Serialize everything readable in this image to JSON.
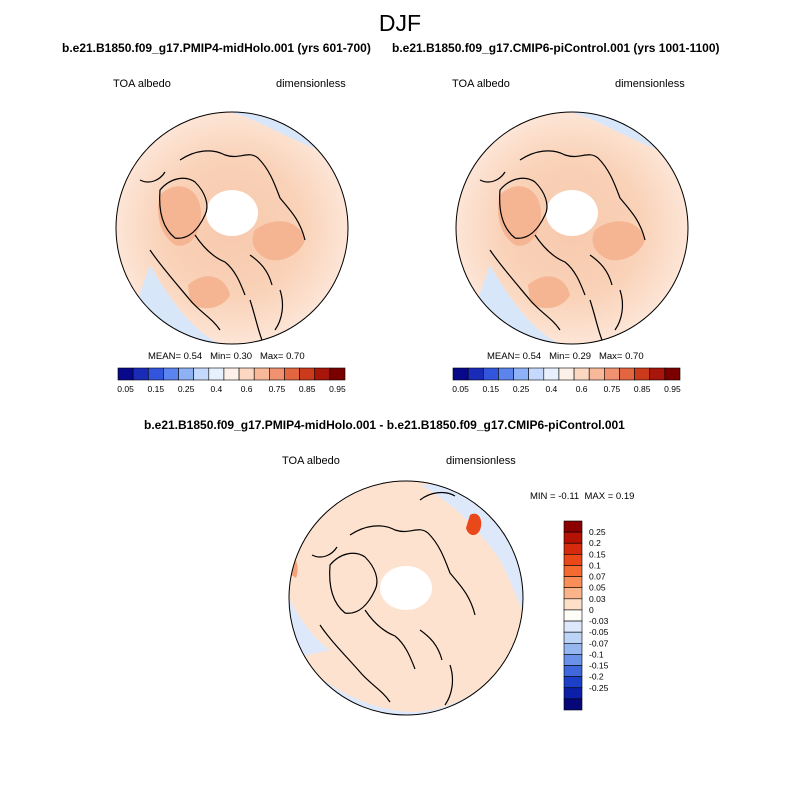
{
  "title": "DJF",
  "panels": [
    {
      "case": "b.e21.B1850.f09_g17.PMIP4-midHolo.001 (yrs 601-700)",
      "variable": "TOA albedo",
      "units": "dimensionless",
      "stats": {
        "mean_label": "MEAN=",
        "mean": "0.54",
        "min_label": "Min=",
        "min": "0.30",
        "max_label": "Max=",
        "max": "0.70"
      }
    },
    {
      "case": "b.e21.B1850.f09_g17.CMIP6-piControl.001 (yrs 1001-1100)",
      "variable": "TOA albedo",
      "units": "dimensionless",
      "stats": {
        "mean_label": "MEAN=",
        "mean": "0.54",
        "min_label": "Min=",
        "min": "0.29",
        "max_label": "Max=",
        "max": "0.70"
      }
    },
    {
      "case": "b.e21.B1850.f09_g17.PMIP4-midHolo.001 - b.e21.B1850.f09_g17.CMIP6-piControl.001",
      "variable": "TOA albedo",
      "units": "dimensionless",
      "stats": {
        "min_label": "MIN =",
        "min": "-0.11",
        "max_label": "MAX =",
        "max": "0.19"
      }
    }
  ],
  "colorbar_abs": {
    "ticks": [
      "0.05",
      "0.15",
      "0.25",
      "0.4",
      "0.6",
      "0.75",
      "0.85",
      "0.95"
    ],
    "colors": [
      "#08088a",
      "#1a2bb8",
      "#3355dd",
      "#5b84ee",
      "#8fb2f6",
      "#c4d9fb",
      "#e7f0fd",
      "#fdf0e8",
      "#fcd8c2",
      "#f8b99a",
      "#f09270",
      "#e46640",
      "#cc3a1c",
      "#a8150b",
      "#7a0000"
    ]
  },
  "colorbar_diff": {
    "ticks": [
      "0.25",
      "0.2",
      "0.15",
      "0.1",
      "0.07",
      "0.05",
      "0.03",
      "0",
      "-0.03",
      "-0.05",
      "-0.07",
      "-0.1",
      "-0.15",
      "-0.2",
      "-0.25"
    ],
    "colors": [
      "#8b0000",
      "#b31205",
      "#d62a0c",
      "#ea4818",
      "#f56a30",
      "#f98e58",
      "#fbb48a",
      "#fde0c8",
      "#fffdf8",
      "#dde9fa",
      "#bcd4f6",
      "#94b7f0",
      "#6a92e8",
      "#3e68dc",
      "#1c3fc8",
      "#0b1fa8",
      "#06087a"
    ]
  }
}
